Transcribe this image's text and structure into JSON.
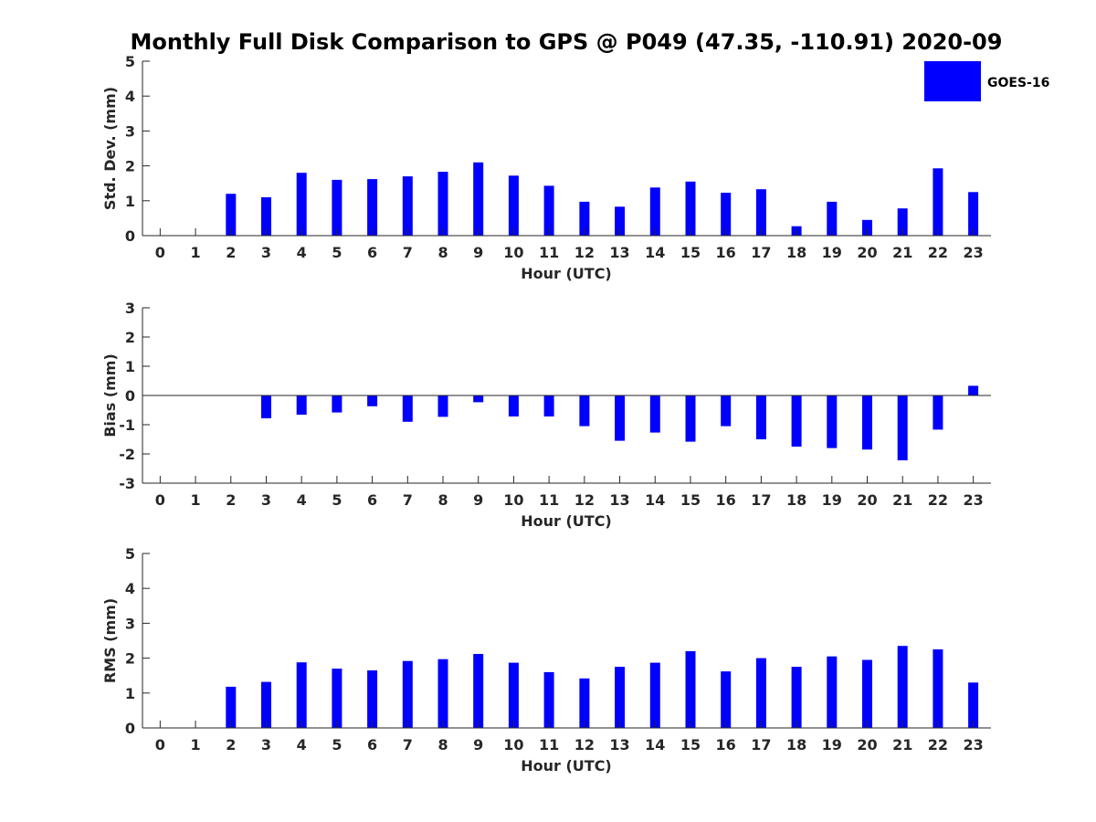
{
  "figure": {
    "title": "Monthly Full Disk Comparison to GPS @ P049 (47.35, -110.91) 2020-09",
    "bar_color": "#0000ff",
    "legend": {
      "label": "GOES-16",
      "placement": "top-right"
    }
  },
  "chart_data": [
    {
      "type": "bar",
      "name": "std-dev",
      "xlabel": "Hour (UTC)",
      "ylabel": "Std. Dev. (mm)",
      "ylim": [
        0,
        5
      ],
      "yticks": [
        0,
        1,
        2,
        3,
        4,
        5
      ],
      "categories": [
        "0",
        "1",
        "2",
        "3",
        "4",
        "5",
        "6",
        "7",
        "8",
        "9",
        "10",
        "11",
        "12",
        "13",
        "14",
        "15",
        "16",
        "17",
        "18",
        "19",
        "20",
        "21",
        "22",
        "23"
      ],
      "series": [
        {
          "values": [
            0,
            0,
            1.2,
            1.1,
            1.8,
            1.6,
            1.62,
            1.7,
            1.83,
            2.1,
            1.72,
            1.43,
            0.97,
            0.83,
            1.38,
            1.55,
            1.23,
            1.33,
            0.27,
            0.97,
            0.45,
            0.78,
            1.93,
            1.25
          ]
        }
      ],
      "legend_visible": true
    },
    {
      "type": "bar",
      "name": "bias",
      "xlabel": "Hour (UTC)",
      "ylabel": "Bias (mm)",
      "ylim": [
        -3,
        3
      ],
      "yticks": [
        -3,
        -2,
        -1,
        0,
        1,
        2,
        3
      ],
      "categories": [
        "0",
        "1",
        "2",
        "3",
        "4",
        "5",
        "6",
        "7",
        "8",
        "9",
        "10",
        "11",
        "12",
        "13",
        "14",
        "15",
        "16",
        "17",
        "18",
        "19",
        "20",
        "21",
        "22",
        "23"
      ],
      "series": [
        {
          "values": [
            0,
            0,
            0,
            -0.78,
            -0.66,
            -0.58,
            -0.37,
            -0.9,
            -0.73,
            -0.23,
            -0.72,
            -0.72,
            -1.05,
            -1.55,
            -1.27,
            -1.58,
            -1.05,
            -1.5,
            -1.75,
            -1.8,
            -1.85,
            -2.22,
            -1.17,
            0.33
          ]
        }
      ],
      "legend_visible": false
    },
    {
      "type": "bar",
      "name": "rms",
      "xlabel": "Hour (UTC)",
      "ylabel": "RMS (mm)",
      "ylim": [
        0,
        5
      ],
      "yticks": [
        0,
        1,
        2,
        3,
        4,
        5
      ],
      "categories": [
        "0",
        "1",
        "2",
        "3",
        "4",
        "5",
        "6",
        "7",
        "8",
        "9",
        "10",
        "11",
        "12",
        "13",
        "14",
        "15",
        "16",
        "17",
        "18",
        "19",
        "20",
        "21",
        "22",
        "23"
      ],
      "series": [
        {
          "values": [
            0,
            0,
            1.18,
            1.32,
            1.88,
            1.7,
            1.65,
            1.92,
            1.97,
            2.12,
            1.87,
            1.6,
            1.42,
            1.75,
            1.87,
            2.2,
            1.62,
            2.0,
            1.75,
            2.05,
            1.95,
            2.35,
            2.25,
            1.3
          ]
        }
      ],
      "legend_visible": false
    }
  ]
}
